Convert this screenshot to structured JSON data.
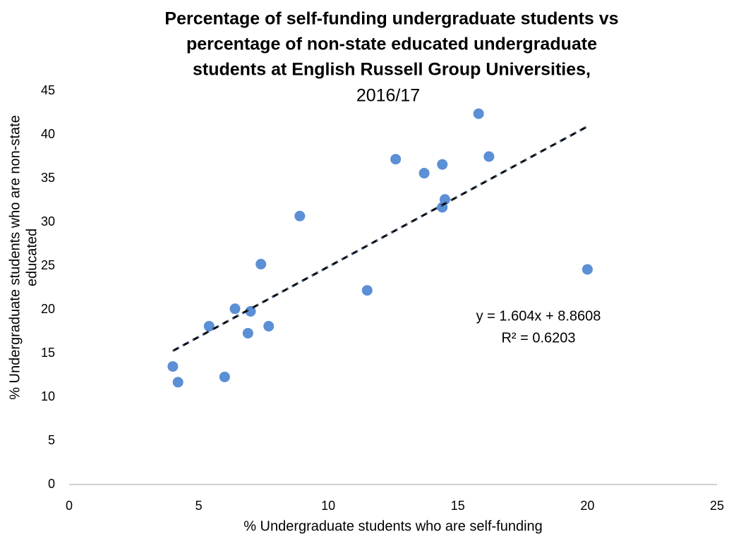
{
  "chart_data": {
    "type": "scatter",
    "title": [
      "Percentage of self-funding undergraduate students vs",
      "percentage of non-state educated undergraduate",
      "students at English Russell Group Universities,"
    ],
    "subtitle": "2016/17",
    "x_label": "% Undergraduate students who are self-funding",
    "y_label": [
      "% Undergraduate students who are non-state",
      "educated"
    ],
    "x": [
      4.0,
      4.2,
      5.4,
      6.0,
      6.4,
      6.9,
      7.0,
      7.4,
      7.7,
      8.9,
      11.5,
      12.6,
      13.7,
      14.4,
      14.4,
      14.5,
      15.8,
      16.2,
      20.0
    ],
    "values": [
      13.5,
      11.7,
      18.1,
      12.3,
      20.1,
      17.3,
      19.8,
      25.2,
      18.1,
      30.7,
      22.2,
      37.2,
      35.6,
      36.6,
      31.7,
      32.6,
      42.4,
      37.5,
      24.6
    ],
    "color": "#5b8fd6",
    "xlim": [
      0,
      25
    ],
    "xticks": [
      0,
      5,
      10,
      15,
      20,
      25
    ],
    "ylim": [
      0,
      45
    ],
    "yticks": [
      0,
      5,
      10,
      15,
      20,
      25,
      30,
      35,
      40,
      45
    ],
    "trendline": {
      "slope": 1.604,
      "intercept": 8.8608,
      "equation": "y = 1.604x + 8.8608",
      "r_squared": "R² = 0.6203"
    }
  }
}
